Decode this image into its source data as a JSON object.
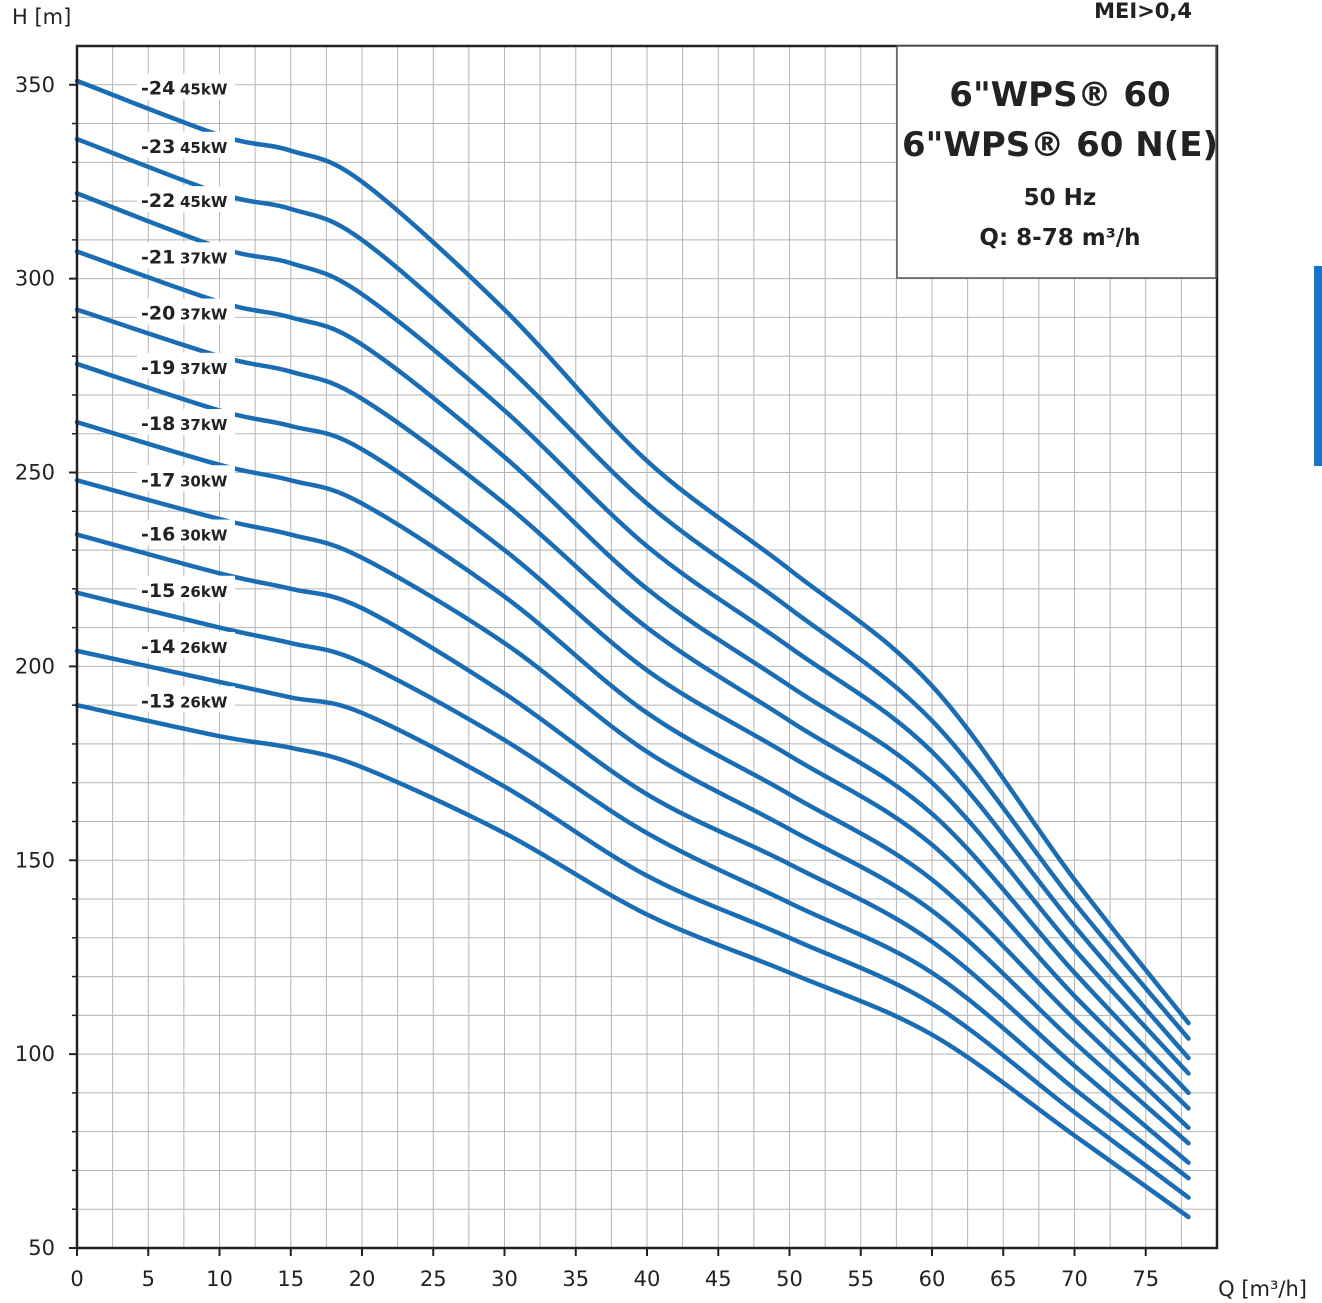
{
  "header": {
    "top_right_label": "MEI>0,4"
  },
  "title_box": {
    "line1": "6\"WPS® 60",
    "line2": "6\"WPS® 60 N(E)",
    "line3": "50 Hz",
    "line4": "Q: 8-78 m³/h"
  },
  "chart_data": {
    "type": "line",
    "title": "",
    "xlabel": "Q [m³/h]",
    "ylabel": "H [m]",
    "xlim": [
      0,
      80
    ],
    "ylim": [
      50,
      360
    ],
    "x_ticks": [
      0,
      5,
      10,
      15,
      20,
      25,
      30,
      35,
      40,
      45,
      50,
      55,
      60,
      65,
      70,
      75
    ],
    "y_ticks": [
      50,
      100,
      150,
      200,
      250,
      300,
      350
    ],
    "grid": true,
    "line_color": "#1a6db3",
    "x": [
      0,
      10,
      15,
      20,
      30,
      40,
      50,
      60,
      70,
      78
    ],
    "series": [
      {
        "name": "-24",
        "power": "45kW",
        "values": [
          351,
          337,
          333,
          325,
          292,
          253,
          225,
          195,
          145,
          108
        ]
      },
      {
        "name": "-23",
        "power": "45kW",
        "values": [
          336,
          322,
          318,
          310,
          278,
          242,
          215,
          186,
          139,
          104
        ]
      },
      {
        "name": "-22",
        "power": "45kW",
        "values": [
          322,
          308,
          304,
          296,
          266,
          231,
          205,
          178,
          133,
          99
        ]
      },
      {
        "name": "-21",
        "power": "37kW",
        "values": [
          307,
          294,
          290,
          283,
          254,
          220,
          195,
          170,
          127,
          95
        ]
      },
      {
        "name": "-20",
        "power": "37kW",
        "values": [
          292,
          280,
          276,
          269,
          242,
          210,
          186,
          162,
          121,
          90
        ]
      },
      {
        "name": "-19",
        "power": "37kW",
        "values": [
          278,
          266,
          262,
          256,
          230,
          199,
          177,
          154,
          115,
          86
        ]
      },
      {
        "name": "-18",
        "power": "37kW",
        "values": [
          263,
          252,
          248,
          242,
          218,
          188,
          167,
          145,
          109,
          81
        ]
      },
      {
        "name": "-17",
        "power": "30kW",
        "values": [
          248,
          238,
          234,
          228,
          206,
          178,
          158,
          137,
          103,
          77
        ]
      },
      {
        "name": "-16",
        "power": "30kW",
        "values": [
          234,
          224,
          220,
          215,
          193,
          167,
          149,
          129,
          97,
          72
        ]
      },
      {
        "name": "-15",
        "power": "26kW",
        "values": [
          219,
          210,
          206,
          201,
          181,
          157,
          139,
          121,
          91,
          68
        ]
      },
      {
        "name": "-14",
        "power": "26kW",
        "values": [
          204,
          196,
          192,
          188,
          169,
          146,
          130,
          113,
          85,
          63
        ]
      },
      {
        "name": "-13",
        "power": "26kW",
        "values": [
          190,
          182,
          179,
          174,
          157,
          136,
          121,
          105,
          79,
          58
        ]
      }
    ]
  }
}
